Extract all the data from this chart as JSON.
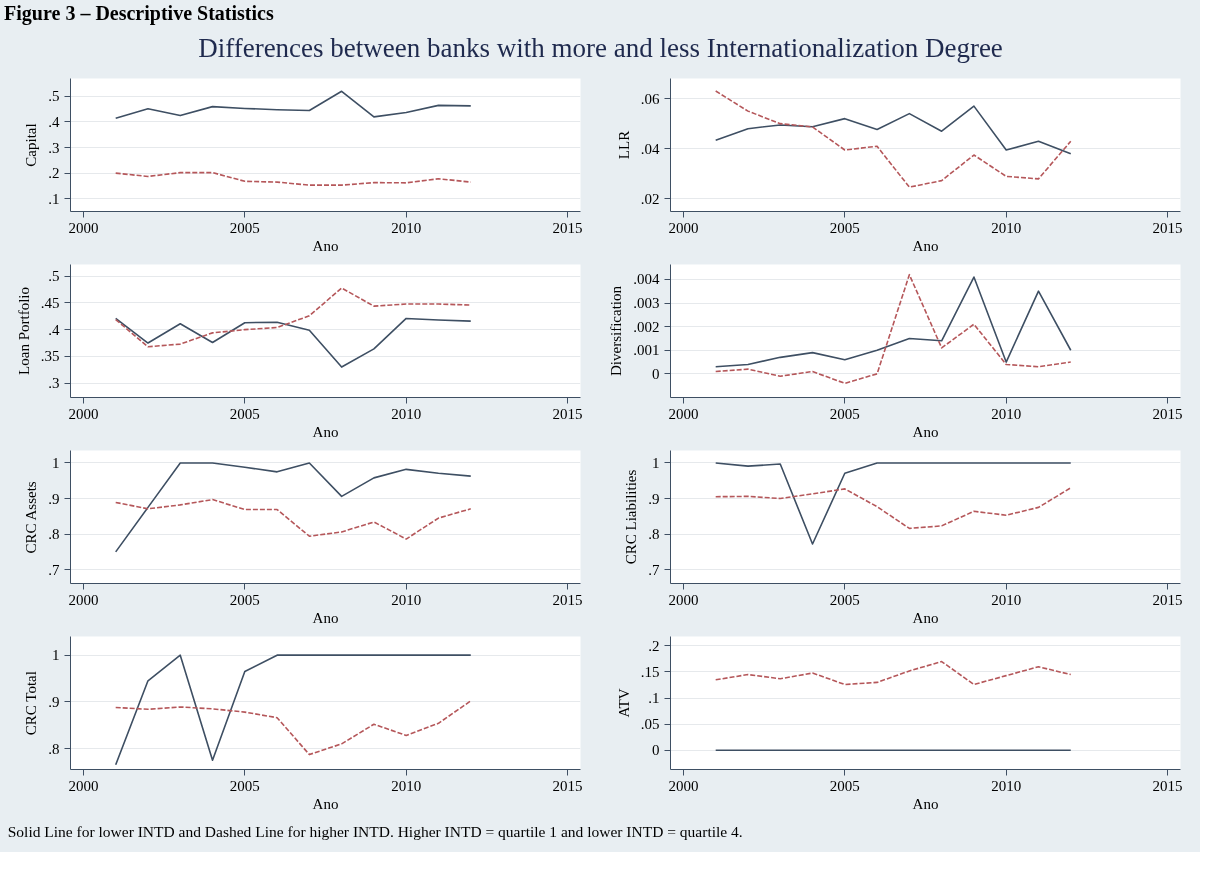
{
  "chart_data": [
    {
      "type": "other",
      "title": "Figure 3 – Descriptive Statistics",
      "subtitle": "Differences between banks with more and less Internationalization Degree"
    },
    {
      "type": "line",
      "ylabel": "Capital",
      "xlabel": "Ano",
      "x": [
        2001,
        2002,
        2003,
        2004,
        2005,
        2006,
        2007,
        2008,
        2009,
        2010,
        2011,
        2012
      ],
      "xlim": [
        1999.6,
        2015.4
      ],
      "xticks": [
        2000,
        2005,
        2010,
        2015
      ],
      "ylim": [
        0.05,
        0.57
      ],
      "yticks": [
        {
          "value": 0.1,
          "label": ".1"
        },
        {
          "value": 0.2,
          "label": ".2"
        },
        {
          "value": 0.3,
          "label": ".3"
        },
        {
          "value": 0.4,
          "label": ".4"
        },
        {
          "value": 0.5,
          "label": ".5"
        }
      ],
      "grid": "y",
      "series": [
        {
          "color": "#3e4f63",
          "line_style": "solid",
          "values": [
            0.415,
            0.452,
            0.425,
            0.46,
            0.453,
            0.448,
            0.445,
            0.52,
            0.42,
            0.437,
            0.465,
            0.463
          ]
        },
        {
          "color": "#b5575a",
          "line_style": "dashed",
          "values": [
            0.2,
            0.187,
            0.202,
            0.202,
            0.168,
            0.165,
            0.153,
            0.153,
            0.163,
            0.162,
            0.178,
            0.165
          ]
        }
      ]
    },
    {
      "type": "line",
      "ylabel": "LLR",
      "xlabel": "Ano",
      "x": [
        2001,
        2002,
        2003,
        2004,
        2005,
        2006,
        2007,
        2008,
        2009,
        2010,
        2011,
        2012
      ],
      "xlim": [
        1999.6,
        2015.4
      ],
      "xticks": [
        2000,
        2005,
        2010,
        2015
      ],
      "ylim": [
        0.015,
        0.068
      ],
      "yticks": [
        {
          "value": 0.02,
          "label": ".02"
        },
        {
          "value": 0.04,
          "label": ".04"
        },
        {
          "value": 0.06,
          "label": ".06"
        }
      ],
      "grid": "y",
      "series": [
        {
          "color": "#3e4f63",
          "line_style": "solid",
          "values": [
            0.0434,
            0.048,
            0.0495,
            0.0488,
            0.052,
            0.0477,
            0.054,
            0.047,
            0.057,
            0.0395,
            0.043,
            0.038
          ]
        },
        {
          "color": "#b5575a",
          "line_style": "dashed",
          "values": [
            0.063,
            0.055,
            0.05,
            0.0487,
            0.0395,
            0.041,
            0.0247,
            0.0273,
            0.0375,
            0.029,
            0.028,
            0.043
          ]
        }
      ]
    },
    {
      "type": "line",
      "ylabel": "Loan Portfolio",
      "xlabel": "Ano",
      "x": [
        2001,
        2002,
        2003,
        2004,
        2005,
        2006,
        2007,
        2008,
        2009,
        2010,
        2011,
        2012
      ],
      "xlim": [
        1999.6,
        2015.4
      ],
      "xticks": [
        2000,
        2005,
        2010,
        2015
      ],
      "ylim": [
        0.273,
        0.522
      ],
      "yticks": [
        {
          "value": 0.3,
          "label": ".3"
        },
        {
          "value": 0.35,
          "label": ".35"
        },
        {
          "value": 0.4,
          "label": ".4"
        },
        {
          "value": 0.45,
          "label": ".45"
        },
        {
          "value": 0.5,
          "label": ".5"
        }
      ],
      "grid": "y",
      "series": [
        {
          "color": "#3e4f63",
          "line_style": "solid",
          "values": [
            0.421,
            0.375,
            0.411,
            0.376,
            0.413,
            0.414,
            0.399,
            0.33,
            0.364,
            0.421,
            0.418,
            0.416
          ]
        },
        {
          "color": "#b5575a",
          "line_style": "dashed",
          "values": [
            0.419,
            0.368,
            0.373,
            0.394,
            0.4,
            0.404,
            0.426,
            0.478,
            0.444,
            0.448,
            0.448,
            0.446
          ]
        }
      ]
    },
    {
      "type": "line",
      "ylabel": "Diversification",
      "xlabel": "Ano",
      "x": [
        2001,
        2002,
        2003,
        2004,
        2005,
        2006,
        2007,
        2008,
        2009,
        2010,
        2011,
        2012
      ],
      "xlim": [
        1999.6,
        2015.4
      ],
      "xticks": [
        2000,
        2005,
        2010,
        2015
      ],
      "ylim": [
        -0.001,
        0.00463
      ],
      "yticks": [
        {
          "value": 0,
          "label": "0"
        },
        {
          "value": 0.001,
          "label": ".001"
        },
        {
          "value": 0.002,
          "label": ".002"
        },
        {
          "value": 0.003,
          "label": ".003"
        },
        {
          "value": 0.004,
          "label": ".004"
        }
      ],
      "grid": "y",
      "series": [
        {
          "color": "#3e4f63",
          "line_style": "solid",
          "values": [
            0.0003,
            0.0004,
            0.0007,
            0.0009,
            0.0006,
            0.001,
            0.0015,
            0.0014,
            0.0041,
            0.0005,
            0.0035,
            0.001
          ]
        },
        {
          "color": "#b5575a",
          "line_style": "dashed",
          "values": [
            0.0001,
            0.0002,
            -0.0001,
            0.0001,
            -0.0004,
            0,
            0.0042,
            0.0011,
            0.0021,
            0.0004,
            0.0003,
            0.0005
          ]
        }
      ]
    },
    {
      "type": "line",
      "ylabel": "CRC Assets",
      "xlabel": "Ano",
      "x": [
        2001,
        2002,
        2003,
        2004,
        2005,
        2006,
        2007,
        2008,
        2009,
        2010,
        2011,
        2012
      ],
      "xlim": [
        1999.6,
        2015.4
      ],
      "xticks": [
        2000,
        2005,
        2010,
        2015
      ],
      "ylim": [
        0.661,
        1.035
      ],
      "yticks": [
        {
          "value": 0.7,
          "label": ".7"
        },
        {
          "value": 0.8,
          "label": ".8"
        },
        {
          "value": 0.9,
          "label": ".9"
        },
        {
          "value": 1,
          "label": "1"
        }
      ],
      "grid": "y",
      "series": [
        {
          "color": "#3e4f63",
          "line_style": "solid",
          "values": [
            0.75,
            0.875,
            1,
            1,
            0.988,
            0.975,
            1,
            0.906,
            0.958,
            0.982,
            0.971,
            0.963
          ]
        },
        {
          "color": "#b5575a",
          "line_style": "dashed",
          "values": [
            0.889,
            0.871,
            0.882,
            0.897,
            0.869,
            0.869,
            0.794,
            0.806,
            0.834,
            0.786,
            0.845,
            0.871
          ]
        }
      ]
    },
    {
      "type": "line",
      "ylabel": "CRC Liabilities",
      "xlabel": "Ano",
      "x": [
        2001,
        2002,
        2003,
        2004,
        2005,
        2006,
        2007,
        2008,
        2009,
        2010,
        2011,
        2012
      ],
      "xlim": [
        1999.6,
        2015.4
      ],
      "xticks": [
        2000,
        2005,
        2010,
        2015
      ],
      "ylim": [
        0.661,
        1.035
      ],
      "yticks": [
        {
          "value": 0.7,
          "label": ".7"
        },
        {
          "value": 0.8,
          "label": ".8"
        },
        {
          "value": 0.9,
          "label": ".9"
        },
        {
          "value": 1,
          "label": "1"
        }
      ],
      "grid": "y",
      "series": [
        {
          "color": "#3e4f63",
          "line_style": "solid",
          "values": [
            1,
            0.991,
            0.997,
            0.772,
            0.971,
            1,
            1,
            1,
            1,
            1,
            1,
            1
          ]
        },
        {
          "color": "#b5575a",
          "line_style": "dashed",
          "values": [
            0.905,
            0.906,
            0.9,
            0.913,
            0.927,
            0.877,
            0.816,
            0.823,
            0.864,
            0.853,
            0.875,
            0.93
          ]
        }
      ]
    },
    {
      "type": "line",
      "ylabel": "CRC Total",
      "xlabel": "Ano",
      "x": [
        2001,
        2002,
        2003,
        2004,
        2005,
        2006,
        2007,
        2008,
        2009,
        2010,
        2011,
        2012
      ],
      "xlim": [
        1999.6,
        2015.4
      ],
      "xticks": [
        2000,
        2005,
        2010,
        2015
      ],
      "ylim": [
        0.755,
        1.04
      ],
      "yticks": [
        {
          "value": 0.8,
          "label": ".8"
        },
        {
          "value": 0.9,
          "label": ".9"
        },
        {
          "value": 1,
          "label": "1"
        }
      ],
      "grid": "y",
      "series": [
        {
          "color": "#3e4f63",
          "line_style": "solid",
          "values": [
            0.765,
            0.945,
            1,
            0.775,
            0.965,
            1,
            1,
            1,
            1,
            1,
            1,
            1
          ]
        },
        {
          "color": "#b5575a",
          "line_style": "dashed",
          "values": [
            0.888,
            0.884,
            0.889,
            0.885,
            0.878,
            0.866,
            0.787,
            0.81,
            0.852,
            0.828,
            0.854,
            0.902
          ]
        }
      ]
    },
    {
      "type": "line",
      "ylabel": "ATV",
      "xlabel": "Ano",
      "x": [
        2001,
        2002,
        2003,
        2004,
        2005,
        2006,
        2007,
        2008,
        2009,
        2010,
        2011,
        2012
      ],
      "xlim": [
        1999.6,
        2015.4
      ],
      "xticks": [
        2000,
        2005,
        2010,
        2015
      ],
      "ylim": [
        -0.037,
        0.218
      ],
      "yticks": [
        {
          "value": 0,
          "label": "0"
        },
        {
          "value": 0.05,
          "label": ".05"
        },
        {
          "value": 0.1,
          "label": ".1"
        },
        {
          "value": 0.15,
          "label": ".15"
        },
        {
          "value": 0.2,
          "label": ".2"
        }
      ],
      "grid": "y",
      "series": [
        {
          "color": "#3e4f63",
          "line_style": "solid",
          "values": [
            0,
            0,
            0,
            0,
            0,
            0,
            0,
            0,
            0,
            0,
            0,
            0
          ]
        },
        {
          "color": "#b5575a",
          "line_style": "dashed",
          "values": [
            0.135,
            0.145,
            0.137,
            0.148,
            0.126,
            0.13,
            0.152,
            0.17,
            0.126,
            0.143,
            0.16,
            0.145
          ]
        }
      ]
    },
    {
      "type": "other",
      "annotations": [
        "Solid Line for lower INTD and Dashed Line for higher INTD. Higher INTD = quartile 1 and lower INTD = quartile 4."
      ]
    }
  ]
}
